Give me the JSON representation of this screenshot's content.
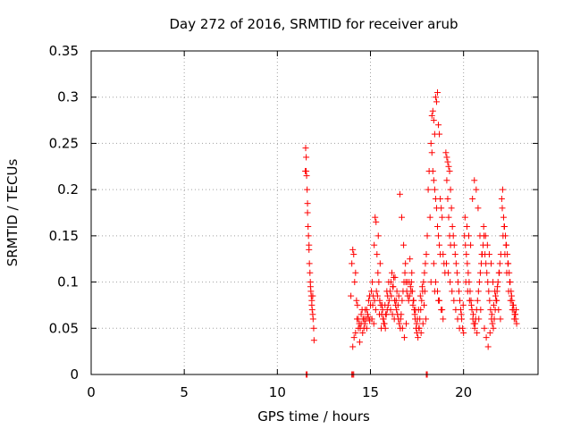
{
  "chart_data": {
    "type": "scatter",
    "title": "Day 272 of 2016, SRMTID for receiver arub",
    "xlabel": "GPS time / hours",
    "ylabel": "SRMTID / TECUs",
    "xlim": [
      0,
      24
    ],
    "ylim": [
      0,
      0.35
    ],
    "xticks": [
      0,
      5,
      10,
      15,
      20
    ],
    "xtick_labels": [
      "0",
      "5",
      "10",
      "15",
      "20"
    ],
    "yticks": [
      0,
      0.05,
      0.1,
      0.15,
      0.2,
      0.25,
      0.3,
      0.35
    ],
    "ytick_labels": [
      "0",
      "0.05",
      "0.1",
      "0.15",
      "0.2",
      "0.25",
      "0.3",
      "0.35"
    ],
    "grid": true,
    "marker": "+",
    "color": "#ff0000",
    "series": [
      {
        "name": "SRMTID",
        "x": [
          11.5,
          11.52,
          11.55,
          11.57,
          11.6,
          11.62,
          11.65,
          11.67,
          11.7,
          11.72,
          11.75,
          11.77,
          11.8,
          11.82,
          11.85,
          11.87,
          11.9,
          11.92,
          11.95,
          11.97,
          11.55,
          11.62,
          11.7,
          11.78,
          11.85,
          11.9,
          13.95,
          14.0,
          14.05,
          14.1,
          14.15,
          14.2,
          14.25,
          14.3,
          14.35,
          14.4,
          14.45,
          14.5,
          14.55,
          14.6,
          14.65,
          14.7,
          14.75,
          14.8,
          14.85,
          14.9,
          14.95,
          15.0,
          14.05,
          14.12,
          14.2,
          14.28,
          14.35,
          14.42,
          14.5,
          14.58,
          14.65,
          14.72,
          14.8,
          14.88,
          14.95,
          15.05,
          15.1,
          15.15,
          15.2,
          15.25,
          15.3,
          15.35,
          15.4,
          15.45,
          15.5,
          15.55,
          15.6,
          15.65,
          15.7,
          15.75,
          15.8,
          15.85,
          15.9,
          15.95,
          16.0,
          15.08,
          15.18,
          15.28,
          15.38,
          15.48,
          15.58,
          15.68,
          15.78,
          15.88,
          15.98,
          15.12,
          15.22,
          15.32,
          15.42,
          15.52,
          15.62,
          15.72,
          15.82,
          15.92,
          16.05,
          16.1,
          16.15,
          16.2,
          16.25,
          16.3,
          16.35,
          16.4,
          16.45,
          16.5,
          16.55,
          16.6,
          16.65,
          16.7,
          16.75,
          16.8,
          16.85,
          16.9,
          16.95,
          17.0,
          16.08,
          16.18,
          16.28,
          16.38,
          16.48,
          16.58,
          16.68,
          16.78,
          16.88,
          16.98,
          16.12,
          16.22,
          16.32,
          16.42,
          16.52,
          16.62,
          16.72,
          16.82,
          16.92,
          17.05,
          17.1,
          17.15,
          17.2,
          17.25,
          17.3,
          17.35,
          17.4,
          17.45,
          17.5,
          17.55,
          17.6,
          17.65,
          17.7,
          17.75,
          17.8,
          17.85,
          17.9,
          17.95,
          18.0,
          17.08,
          17.18,
          17.28,
          17.38,
          17.48,
          17.58,
          17.68,
          17.78,
          17.88,
          17.98,
          17.12,
          17.22,
          17.32,
          17.42,
          17.52,
          17.62,
          17.72,
          17.82,
          17.92,
          18.05,
          18.1,
          18.15,
          18.2,
          18.25,
          18.3,
          18.35,
          18.4,
          18.45,
          18.5,
          18.55,
          18.6,
          18.65,
          18.7,
          18.75,
          18.8,
          18.85,
          18.9,
          18.95,
          19.0,
          18.3,
          18.35,
          18.4,
          18.45,
          18.5,
          18.55,
          18.6,
          18.65,
          18.7,
          18.75,
          18.4,
          18.5,
          18.6,
          18.7,
          18.8,
          18.9,
          18.25,
          18.45,
          18.65,
          18.85,
          19.05,
          19.1,
          19.15,
          19.2,
          19.25,
          19.3,
          19.35,
          19.4,
          19.45,
          19.5,
          19.55,
          19.6,
          19.65,
          19.7,
          19.75,
          19.8,
          19.85,
          19.9,
          19.95,
          20.0,
          19.1,
          19.15,
          19.2,
          19.25,
          19.3,
          19.08,
          19.18,
          19.28,
          19.38,
          19.48,
          19.58,
          19.68,
          19.78,
          19.88,
          19.98,
          20.05,
          20.1,
          20.15,
          20.2,
          20.25,
          20.3,
          20.35,
          20.4,
          20.45,
          20.5,
          20.55,
          20.6,
          20.65,
          20.7,
          20.75,
          20.8,
          20.85,
          20.9,
          20.95,
          21.0,
          20.08,
          20.18,
          20.28,
          20.38,
          20.48,
          20.58,
          20.68,
          20.78,
          20.88,
          20.98,
          20.12,
          20.22,
          20.32,
          20.42,
          20.52,
          20.62,
          20.72,
          20.82,
          20.92,
          21.05,
          21.1,
          21.15,
          21.2,
          21.25,
          21.3,
          21.35,
          21.4,
          21.45,
          21.5,
          21.55,
          21.6,
          21.65,
          21.7,
          21.75,
          21.8,
          21.85,
          21.9,
          21.95,
          22.0,
          21.08,
          21.18,
          21.28,
          21.38,
          21.48,
          21.58,
          21.68,
          21.78,
          21.88,
          21.98,
          21.12,
          21.22,
          21.32,
          21.42,
          21.52,
          21.62,
          21.72,
          21.82,
          21.92,
          22.05,
          22.1,
          22.15,
          22.2,
          22.25,
          22.3,
          22.35,
          22.4,
          22.45,
          22.5,
          22.55,
          22.6,
          22.65,
          22.7,
          22.75,
          22.8,
          22.85,
          22.08,
          22.18,
          22.28,
          22.38,
          22.48,
          22.58,
          22.68,
          22.78,
          22.12,
          22.22,
          22.32,
          22.42,
          22.52,
          22.62,
          22.72,
          22.82,
          11.55,
          11.6,
          14.0,
          14.05,
          14.1,
          18.0,
          18.05
        ],
        "y": [
          0.22,
          0.245,
          0.235,
          0.215,
          0.2,
          0.185,
          0.16,
          0.15,
          0.135,
          0.12,
          0.11,
          0.1,
          0.09,
          0.085,
          0.075,
          0.07,
          0.065,
          0.06,
          0.05,
          0.037,
          0.22,
          0.175,
          0.14,
          0.095,
          0.08,
          0.085,
          0.085,
          0.12,
          0.135,
          0.13,
          0.1,
          0.11,
          0.08,
          0.075,
          0.06,
          0.055,
          0.05,
          0.065,
          0.07,
          0.06,
          0.05,
          0.055,
          0.06,
          0.07,
          0.065,
          0.08,
          0.085,
          0.075,
          0.03,
          0.04,
          0.045,
          0.06,
          0.05,
          0.035,
          0.055,
          0.045,
          0.06,
          0.07,
          0.05,
          0.062,
          0.058,
          0.09,
          0.1,
          0.085,
          0.14,
          0.17,
          0.165,
          0.13,
          0.11,
          0.1,
          0.08,
          0.075,
          0.065,
          0.07,
          0.06,
          0.055,
          0.05,
          0.065,
          0.07,
          0.075,
          0.08,
          0.06,
          0.055,
          0.07,
          0.085,
          0.065,
          0.05,
          0.06,
          0.075,
          0.09,
          0.1,
          0.075,
          0.08,
          0.09,
          0.15,
          0.12,
          0.075,
          0.055,
          0.065,
          0.085,
          0.09,
          0.1,
          0.11,
          0.095,
          0.105,
          0.08,
          0.075,
          0.07,
          0.065,
          0.06,
          0.055,
          0.05,
          0.065,
          0.08,
          0.09,
          0.1,
          0.11,
          0.1,
          0.09,
          0.085,
          0.07,
          0.065,
          0.06,
          0.08,
          0.075,
          0.195,
          0.17,
          0.14,
          0.12,
          0.1,
          0.085,
          0.095,
          0.105,
          0.09,
          0.085,
          0.06,
          0.05,
          0.04,
          0.055,
          0.08,
          0.085,
          0.095,
          0.1,
          0.09,
          0.08,
          0.07,
          0.06,
          0.05,
          0.045,
          0.04,
          0.05,
          0.06,
          0.07,
          0.08,
          0.09,
          0.1,
          0.11,
          0.12,
          0.13,
          0.1,
          0.09,
          0.075,
          0.065,
          0.055,
          0.07,
          0.085,
          0.095,
          0.075,
          0.06,
          0.125,
          0.11,
          0.08,
          0.07,
          0.06,
          0.05,
          0.045,
          0.055,
          0.09,
          0.15,
          0.2,
          0.22,
          0.17,
          0.25,
          0.28,
          0.285,
          0.275,
          0.26,
          0.3,
          0.295,
          0.305,
          0.27,
          0.26,
          0.19,
          0.18,
          0.17,
          0.13,
          0.12,
          0.11,
          0.24,
          0.22,
          0.21,
          0.2,
          0.19,
          0.18,
          0.16,
          0.15,
          0.14,
          0.13,
          0.12,
          0.1,
          0.09,
          0.08,
          0.07,
          0.06,
          0.1,
          0.09,
          0.08,
          0.07,
          0.24,
          0.235,
          0.23,
          0.225,
          0.22,
          0.2,
          0.18,
          0.16,
          0.15,
          0.14,
          0.13,
          0.12,
          0.11,
          0.1,
          0.09,
          0.08,
          0.07,
          0.06,
          0.05,
          0.045,
          0.21,
          0.19,
          0.17,
          0.15,
          0.14,
          0.12,
          0.11,
          0.1,
          0.09,
          0.08,
          0.07,
          0.06,
          0.05,
          0.065,
          0.075,
          0.15,
          0.14,
          0.13,
          0.12,
          0.11,
          0.1,
          0.09,
          0.08,
          0.07,
          0.06,
          0.055,
          0.05,
          0.06,
          0.07,
          0.08,
          0.09,
          0.1,
          0.11,
          0.12,
          0.13,
          0.17,
          0.16,
          0.15,
          0.14,
          0.19,
          0.21,
          0.2,
          0.18,
          0.15,
          0.13,
          0.1,
          0.09,
          0.08,
          0.075,
          0.065,
          0.055,
          0.045,
          0.06,
          0.07,
          0.14,
          0.15,
          0.13,
          0.12,
          0.11,
          0.1,
          0.09,
          0.08,
          0.07,
          0.06,
          0.055,
          0.05,
          0.06,
          0.07,
          0.08,
          0.09,
          0.1,
          0.11,
          0.12,
          0.13,
          0.16,
          0.15,
          0.14,
          0.13,
          0.12,
          0.1,
          0.09,
          0.08,
          0.07,
          0.06,
          0.05,
          0.04,
          0.03,
          0.045,
          0.065,
          0.075,
          0.085,
          0.095,
          0.11,
          0.19,
          0.2,
          0.17,
          0.16,
          0.15,
          0.14,
          0.13,
          0.12,
          0.11,
          0.1,
          0.09,
          0.08,
          0.075,
          0.07,
          0.065,
          0.06,
          0.055,
          0.18,
          0.16,
          0.14,
          0.12,
          0.1,
          0.085,
          0.075,
          0.065,
          0.15,
          0.13,
          0.11,
          0.09,
          0.08,
          0.07,
          0.06,
          0.07,
          0.0,
          0.0,
          0.0,
          0.0,
          0.0,
          0.0,
          0.0
        ]
      }
    ]
  }
}
